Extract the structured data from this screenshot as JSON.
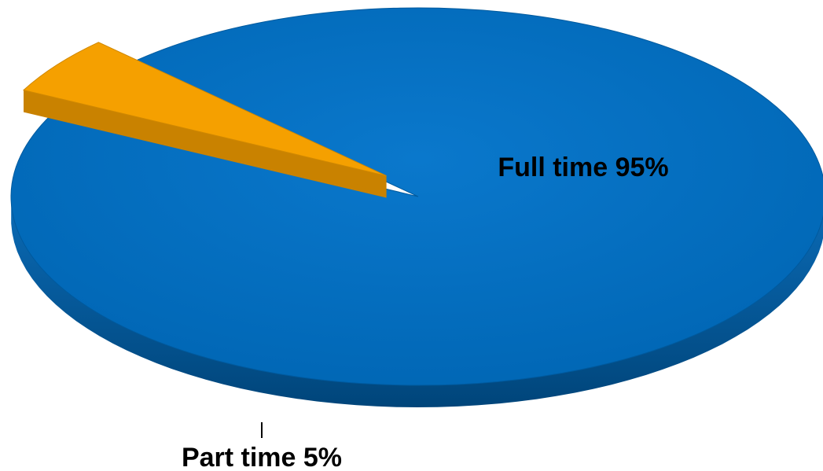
{
  "chart_data": {
    "type": "pie",
    "style": "3d-exploded",
    "slices": [
      {
        "label": "Full time",
        "value": 95,
        "display": "Full time 95%",
        "color": "#0070C0"
      },
      {
        "label": "Part time",
        "value": 5,
        "display": "Part time 5%",
        "color": "#F5A000",
        "exploded": true
      }
    ],
    "title": "",
    "legend": "none"
  }
}
